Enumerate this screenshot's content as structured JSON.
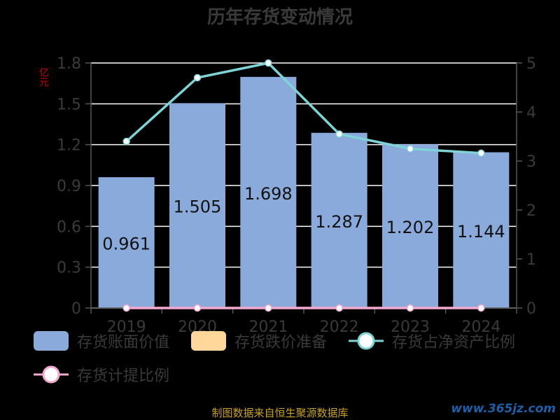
{
  "chart_data": {
    "type": "bar",
    "title": "历年存货变动情况",
    "y_unit": "亿元",
    "categories": [
      "2019",
      "2020",
      "2021",
      "2022",
      "2023",
      "2024"
    ],
    "series": [
      {
        "name": "存货账面价值",
        "type": "bar",
        "axis": "left",
        "color": "#8aaadc",
        "values": [
          0.961,
          1.505,
          1.698,
          1.287,
          1.202,
          1.144
        ]
      },
      {
        "name": "存货跌价准备",
        "type": "bar",
        "axis": "left",
        "color": "#ffd79a",
        "values": [
          0,
          0,
          0,
          0,
          0,
          0
        ]
      },
      {
        "name": "存货占净资产比例",
        "type": "line",
        "axis": "right",
        "color": "#7fd3d6",
        "values": [
          3.4,
          4.7,
          5.0,
          3.55,
          3.25,
          3.16
        ]
      },
      {
        "name": "存货计提比例",
        "type": "line",
        "axis": "right",
        "color": "#f3a8d0",
        "values": [
          0,
          0,
          0,
          0,
          0,
          0
        ]
      }
    ],
    "y_left": {
      "min": 0,
      "max": 1.8,
      "ticks": [
        "0",
        "0.3",
        "0.6",
        "0.9",
        "1.2",
        "1.5",
        "1.8"
      ]
    },
    "y_right": {
      "min": 0,
      "max": 5,
      "ticks": [
        "0",
        "1",
        "2",
        "3",
        "4",
        "5"
      ]
    },
    "grid": true,
    "legend_position": "bottom"
  },
  "footer": "制图数据来自恒生聚源数据库",
  "watermark": "www.365jz.com"
}
